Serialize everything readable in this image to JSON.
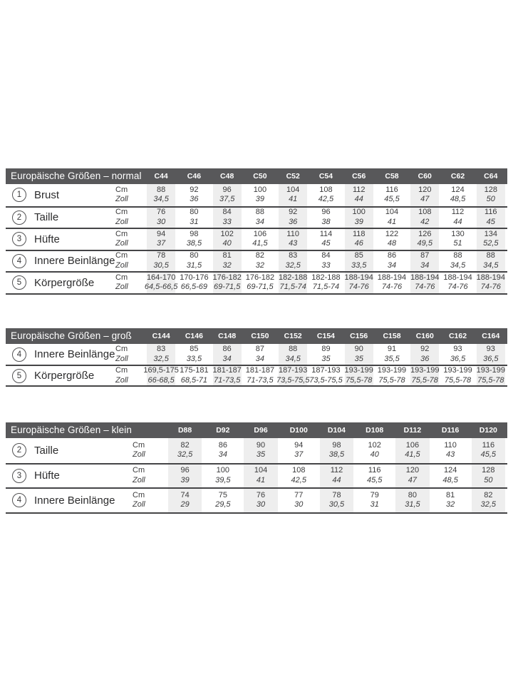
{
  "colors": {
    "header_bg": "#58585a",
    "header_text": "#ffffff",
    "stripe_bg": "#eeeeee",
    "rule": "#454547",
    "text": "#3b3b3c"
  },
  "unit_labels": {
    "cm": "Cm",
    "zoll": "Zoll"
  },
  "tables": [
    {
      "id": "normal",
      "title": "Europäische Größen – normal",
      "columns": [
        "C44",
        "C46",
        "C48",
        "C50",
        "C52",
        "C54",
        "C56",
        "C58",
        "C60",
        "C62",
        "C64"
      ],
      "rows": [
        {
          "num": "1",
          "label": "Brust",
          "cm": [
            "88",
            "92",
            "96",
            "100",
            "104",
            "108",
            "112",
            "116",
            "120",
            "124",
            "128"
          ],
          "zoll": [
            "34,5",
            "36",
            "37,5",
            "39",
            "41",
            "42,5",
            "44",
            "45,5",
            "47",
            "48,5",
            "50"
          ]
        },
        {
          "num": "2",
          "label": "Taille",
          "cm": [
            "76",
            "80",
            "84",
            "88",
            "92",
            "96",
            "100",
            "104",
            "108",
            "112",
            "116"
          ],
          "zoll": [
            "30",
            "31",
            "33",
            "34",
            "36",
            "38",
            "39",
            "41",
            "42",
            "44",
            "45"
          ]
        },
        {
          "num": "3",
          "label": "Hüfte",
          "cm": [
            "94",
            "98",
            "102",
            "106",
            "110",
            "114",
            "118",
            "122",
            "126",
            "130",
            "134"
          ],
          "zoll": [
            "37",
            "38,5",
            "40",
            "41,5",
            "43",
            "45",
            "46",
            "48",
            "49,5",
            "51",
            "52,5"
          ]
        },
        {
          "num": "4",
          "label": "Innere Beinlänge",
          "cm": [
            "78",
            "80",
            "81",
            "82",
            "83",
            "84",
            "85",
            "86",
            "87",
            "88",
            "88"
          ],
          "zoll": [
            "30,5",
            "31,5",
            "32",
            "32",
            "32,5",
            "33",
            "33,5",
            "34",
            "34",
            "34,5",
            "34,5"
          ]
        },
        {
          "num": "5",
          "label": "Körpergröße",
          "cm": [
            "164-170",
            "170-176",
            "176-182",
            "176-182",
            "182-188",
            "182-188",
            "188-194",
            "188-194",
            "188-194",
            "188-194",
            "188-194"
          ],
          "zoll": [
            "64,5-66,5",
            "66,5-69",
            "69-71,5",
            "69-71,5",
            "71,5-74",
            "71,5-74",
            "74-76",
            "74-76",
            "74-76",
            "74-76",
            "74-76"
          ]
        }
      ]
    },
    {
      "id": "gross",
      "title": "Europäische Größen – groß",
      "columns": [
        "C144",
        "C146",
        "C148",
        "C150",
        "C152",
        "C154",
        "C156",
        "C158",
        "C160",
        "C162",
        "C164"
      ],
      "rows": [
        {
          "num": "4",
          "label": "Innere Beinlänge",
          "cm": [
            "83",
            "85",
            "86",
            "87",
            "88",
            "89",
            "90",
            "91",
            "92",
            "93",
            "93"
          ],
          "zoll": [
            "32,5",
            "33,5",
            "34",
            "34",
            "34,5",
            "35",
            "35",
            "35,5",
            "36",
            "36,5",
            "36,5"
          ]
        },
        {
          "num": "5",
          "label": "Körpergröße",
          "cm": [
            "169,5-175",
            "175-181",
            "181-187",
            "181-187",
            "187-193",
            "187-193",
            "193-199",
            "193-199",
            "193-199",
            "193-199",
            "193-199"
          ],
          "zoll": [
            "66-68,5",
            "68,5-71",
            "71-73,5",
            "71-73,5",
            "73,5-75,5",
            "73,5-75,5",
            "75,5-78",
            "75,5-78",
            "75,5-78",
            "75,5-78",
            "75,5-78"
          ]
        }
      ]
    },
    {
      "id": "klein",
      "title": "Europäische Größen – klein",
      "columns": [
        "D88",
        "D92",
        "D96",
        "D100",
        "D104",
        "D108",
        "D112",
        "D116",
        "D120"
      ],
      "rows": [
        {
          "num": "2",
          "label": "Taille",
          "cm": [
            "82",
            "86",
            "90",
            "94",
            "98",
            "102",
            "106",
            "110",
            "116"
          ],
          "zoll": [
            "32,5",
            "34",
            "35",
            "37",
            "38,5",
            "40",
            "41,5",
            "43",
            "45,5"
          ]
        },
        {
          "num": "3",
          "label": "Hüfte",
          "cm": [
            "96",
            "100",
            "104",
            "108",
            "112",
            "116",
            "120",
            "124",
            "128"
          ],
          "zoll": [
            "39",
            "39,5",
            "41",
            "42,5",
            "44",
            "45,5",
            "47",
            "48,5",
            "50"
          ]
        },
        {
          "num": "4",
          "label": "Innere Beinlänge",
          "cm": [
            "74",
            "75",
            "76",
            "77",
            "78",
            "79",
            "80",
            "81",
            "82"
          ],
          "zoll": [
            "29",
            "29,5",
            "30",
            "30",
            "30,5",
            "31",
            "31,5",
            "32",
            "32,5"
          ]
        }
      ]
    }
  ]
}
